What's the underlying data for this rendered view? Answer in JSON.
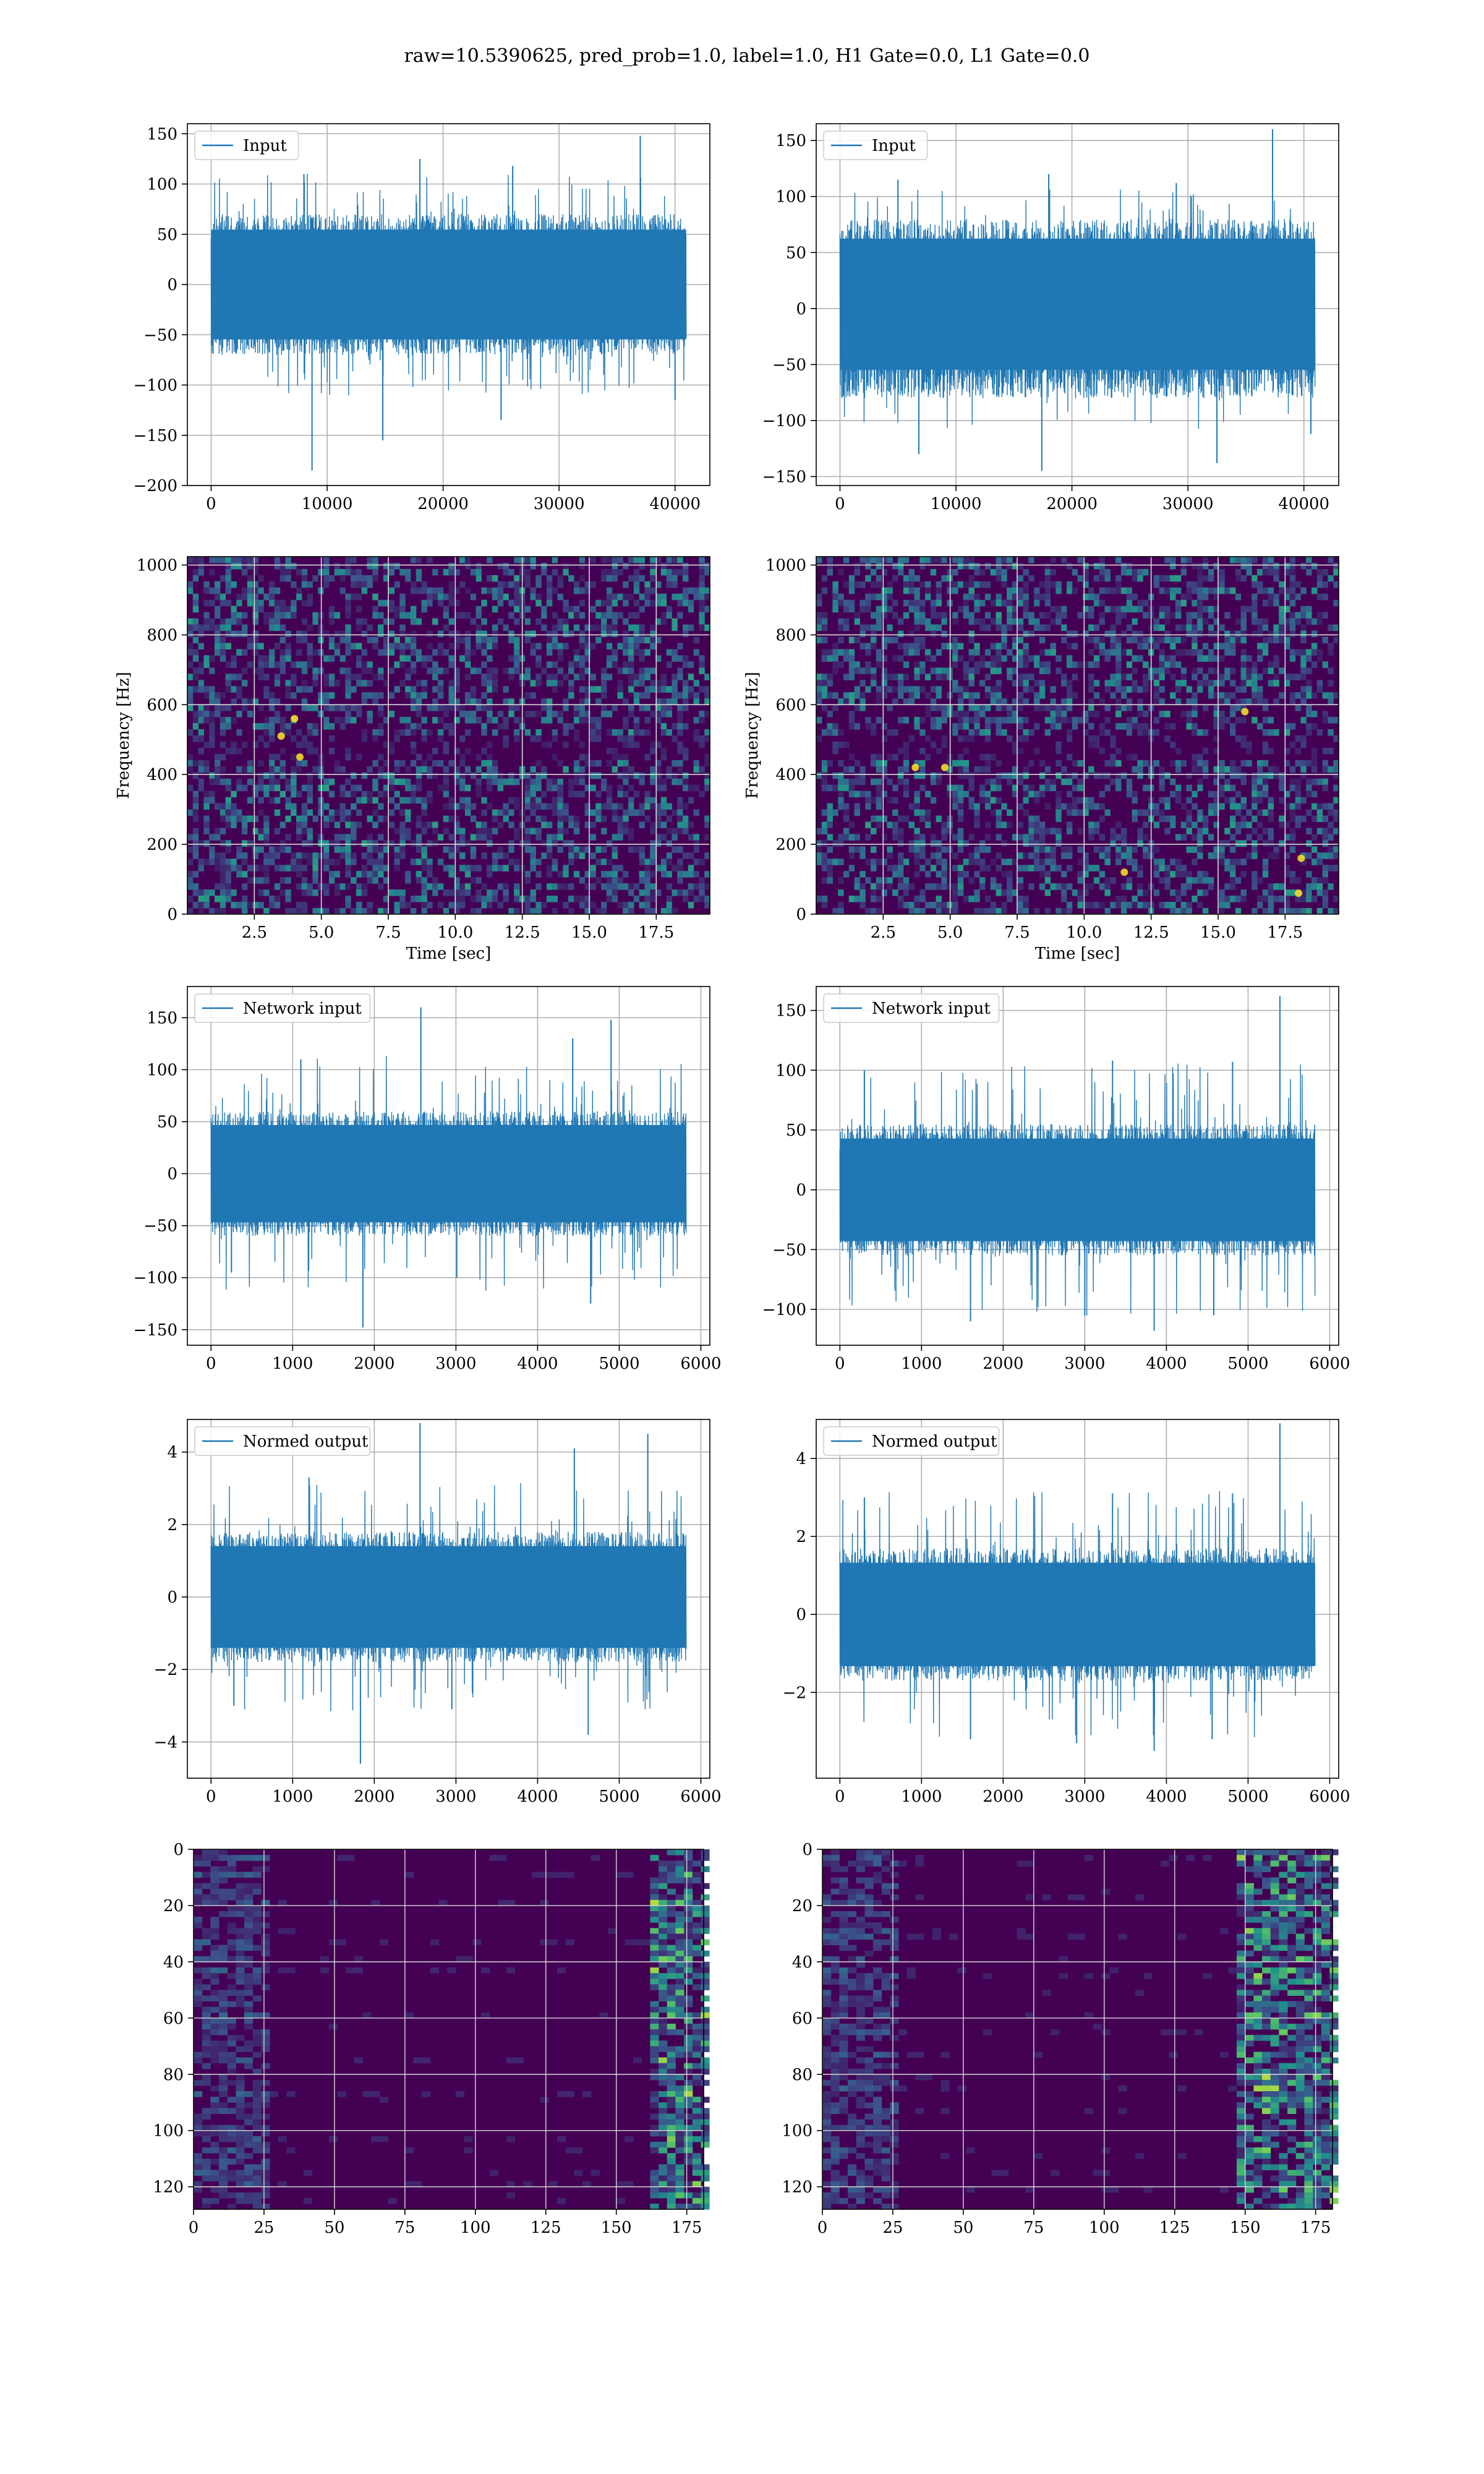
{
  "figure": {
    "title": "raw=10.5390625, pred_prob=1.0, label=1.0, H1 Gate=0.0, L1 Gate=0.0"
  },
  "colors": {
    "line": "#1f77b4",
    "grid": "#b0b0b0",
    "viridis_low": "#440154",
    "viridis_mid": "#21918c",
    "viridis_high": "#fde725"
  },
  "chart_data": [
    {
      "id": "input-h1",
      "type": "line",
      "legend": "Input",
      "legend_position": "upper left",
      "xlim": [
        -2050,
        43000
      ],
      "ylim": [
        -200,
        160
      ],
      "xticks": [
        0,
        10000,
        20000,
        30000,
        40000
      ],
      "yticks": [
        -200,
        -150,
        -100,
        -50,
        0,
        50,
        100,
        150
      ],
      "x_range": [
        0,
        40960
      ],
      "band": [
        -70,
        70
      ],
      "spikes_up": [
        [
          8000,
          110
        ],
        [
          18000,
          125
        ],
        [
          26000,
          118
        ],
        [
          37000,
          148
        ]
      ],
      "spikes_down": [
        [
          8700,
          -185
        ],
        [
          14800,
          -155
        ],
        [
          25000,
          -135
        ],
        [
          40000,
          -115
        ]
      ]
    },
    {
      "id": "input-l1",
      "type": "line",
      "legend": "Input",
      "legend_position": "upper left",
      "xlim": [
        -2050,
        43000
      ],
      "ylim": [
        -158,
        165
      ],
      "xticks": [
        0,
        10000,
        20000,
        30000,
        40000
      ],
      "yticks": [
        -150,
        -100,
        -50,
        0,
        50,
        100,
        150
      ],
      "x_range": [
        0,
        40960
      ],
      "band": [
        -70,
        80
      ],
      "spikes_up": [
        [
          5000,
          115
        ],
        [
          18000,
          120
        ],
        [
          29000,
          112
        ],
        [
          37300,
          160
        ]
      ],
      "spikes_down": [
        [
          17400,
          -145
        ],
        [
          32500,
          -138
        ],
        [
          6800,
          -130
        ],
        [
          40600,
          -112
        ]
      ]
    },
    {
      "id": "spec-h1",
      "type": "heatmap",
      "xlabel": "Time [sec]",
      "ylabel": "Frequency [Hz]",
      "xlim": [
        0,
        19.5
      ],
      "ylim": [
        0,
        1024
      ],
      "xticks": [
        2.5,
        5.0,
        7.5,
        10.0,
        12.5,
        15.0,
        17.5
      ],
      "yticks": [
        0,
        200,
        400,
        600,
        800,
        1000
      ],
      "hotspots": [
        [
          4.0,
          560
        ],
        [
          4.2,
          450
        ],
        [
          3.5,
          510
        ]
      ]
    },
    {
      "id": "spec-l1",
      "type": "heatmap",
      "xlabel": "Time [sec]",
      "ylabel": "Frequency [Hz]",
      "xlim": [
        0,
        19.5
      ],
      "ylim": [
        0,
        1024
      ],
      "xticks": [
        2.5,
        5.0,
        7.5,
        10.0,
        12.5,
        15.0,
        17.5
      ],
      "yticks": [
        0,
        200,
        400,
        600,
        800,
        1000
      ],
      "hotspots": [
        [
          16.0,
          580
        ],
        [
          18.0,
          60
        ],
        [
          18.1,
          160
        ],
        [
          3.7,
          420
        ],
        [
          4.8,
          420
        ],
        [
          11.5,
          120
        ]
      ]
    },
    {
      "id": "net-h1",
      "type": "line",
      "legend": "Network input",
      "legend_position": "upper left",
      "xlim": [
        -290,
        6110
      ],
      "ylim": [
        -165,
        180
      ],
      "xticks": [
        0,
        1000,
        2000,
        3000,
        4000,
        5000,
        6000
      ],
      "yticks": [
        -150,
        -100,
        -50,
        0,
        50,
        100,
        150
      ],
      "x_range": [
        0,
        5820
      ],
      "band": [
        -60,
        60
      ],
      "spikes_up": [
        [
          2570,
          160
        ],
        [
          4900,
          148
        ],
        [
          4430,
          130
        ],
        [
          1100,
          110
        ]
      ],
      "spikes_down": [
        [
          1860,
          -148
        ],
        [
          4650,
          -125
        ],
        [
          3010,
          -100
        ],
        [
          250,
          -95
        ]
      ]
    },
    {
      "id": "net-l1",
      "type": "line",
      "legend": "Network input",
      "legend_position": "upper left",
      "xlim": [
        -290,
        6110
      ],
      "ylim": [
        -130,
        170
      ],
      "xticks": [
        0,
        1000,
        2000,
        3000,
        4000,
        5000,
        6000
      ],
      "yticks": [
        -100,
        -50,
        0,
        50,
        100,
        150
      ],
      "x_range": [
        0,
        5820
      ],
      "band": [
        -55,
        55
      ],
      "spikes_up": [
        [
          5390,
          162
        ],
        [
          3340,
          108
        ],
        [
          4810,
          107
        ],
        [
          300,
          100
        ]
      ],
      "spikes_down": [
        [
          3850,
          -118
        ],
        [
          1600,
          -110
        ],
        [
          3000,
          -105
        ],
        [
          4580,
          -105
        ]
      ]
    },
    {
      "id": "norm-h1",
      "type": "line",
      "legend": "Normed output",
      "legend_position": "upper left",
      "xlim": [
        -290,
        6110
      ],
      "ylim": [
        -5.0,
        4.9
      ],
      "xticks": [
        0,
        1000,
        2000,
        3000,
        4000,
        5000,
        6000
      ],
      "yticks": [
        -4,
        -2,
        0,
        2,
        4
      ],
      "x_range": [
        0,
        5820
      ],
      "band": [
        -1.8,
        1.8
      ],
      "spikes_up": [
        [
          2560,
          4.8
        ],
        [
          5350,
          4.5
        ],
        [
          4450,
          4.1
        ],
        [
          1200,
          3.3
        ]
      ],
      "spikes_down": [
        [
          1830,
          -4.6
        ],
        [
          4620,
          -3.8
        ],
        [
          2950,
          -3.1
        ],
        [
          280,
          -3.0
        ]
      ]
    },
    {
      "id": "norm-l1",
      "type": "line",
      "legend": "Normed output",
      "legend_position": "upper left",
      "xlim": [
        -290,
        6110
      ],
      "ylim": [
        -4.2,
        5.0
      ],
      "xticks": [
        0,
        1000,
        2000,
        3000,
        4000,
        5000,
        6000
      ],
      "yticks": [
        -2,
        0,
        2,
        4
      ],
      "x_range": [
        0,
        5820
      ],
      "band": [
        -1.7,
        1.7
      ],
      "spikes_up": [
        [
          5390,
          4.9
        ],
        [
          3340,
          3.1
        ],
        [
          4810,
          3.1
        ],
        [
          300,
          3.0
        ]
      ],
      "spikes_down": [
        [
          3850,
          -3.5
        ],
        [
          1600,
          -3.2
        ],
        [
          2900,
          -3.3
        ],
        [
          4560,
          -3.2
        ]
      ]
    },
    {
      "id": "feat-h1",
      "type": "heatmap",
      "xlim": [
        0,
        181
      ],
      "ylim": [
        128,
        0
      ],
      "xticks": [
        0,
        25,
        50,
        75,
        100,
        125,
        150,
        175
      ],
      "yticks": [
        0,
        20,
        40,
        60,
        80,
        100,
        120
      ],
      "hot_columns_from": 160
    },
    {
      "id": "feat-l1",
      "type": "heatmap",
      "xlim": [
        0,
        181
      ],
      "ylim": [
        128,
        0
      ],
      "xticks": [
        0,
        25,
        50,
        75,
        100,
        125,
        150,
        175
      ],
      "yticks": [
        0,
        20,
        40,
        60,
        80,
        100,
        120
      ],
      "hot_columns_from": 145
    }
  ]
}
